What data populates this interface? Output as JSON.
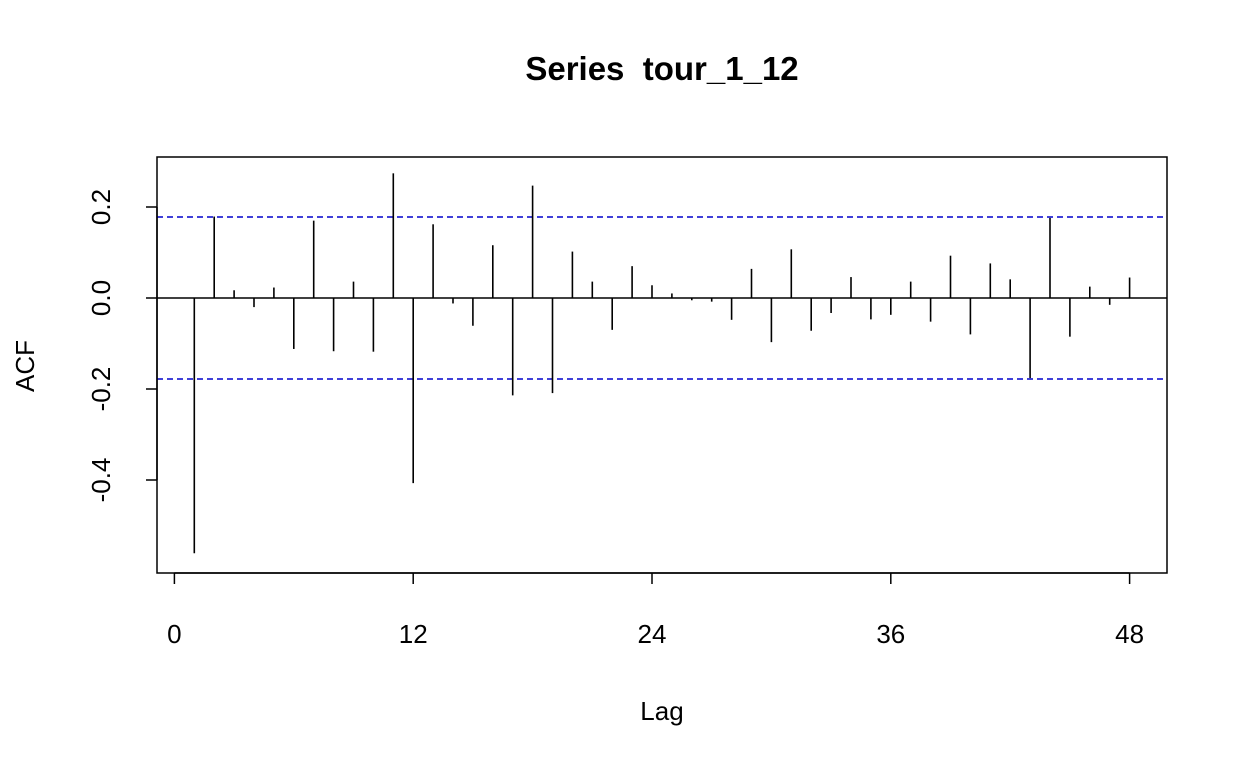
{
  "chart_data": {
    "type": "bar",
    "title": "Series  tour_1_12",
    "xlabel": "Lag",
    "ylabel": "ACF",
    "xlim": [
      -1,
      50
    ],
    "ylim": [
      -0.58,
      0.31
    ],
    "x_ticks": [
      0,
      12,
      24,
      36,
      48
    ],
    "x_tick_labels": [
      "0",
      "12",
      "24",
      "36",
      "48"
    ],
    "y_ticks": [
      -0.4,
      -0.2,
      0.0,
      0.2
    ],
    "y_tick_labels": [
      "-0.4",
      "-0.2",
      "0.0",
      "0.2"
    ],
    "confidence_bounds": [
      0.178,
      -0.178
    ],
    "zero_line": 0,
    "colors": {
      "bars": "#000000",
      "bounds": "#0000CC",
      "axes": "#000000"
    },
    "lags": [
      1,
      2,
      3,
      4,
      5,
      6,
      7,
      8,
      9,
      10,
      11,
      12,
      13,
      14,
      15,
      16,
      17,
      18,
      19,
      20,
      21,
      22,
      23,
      24,
      25,
      26,
      27,
      28,
      29,
      30,
      31,
      32,
      33,
      34,
      35,
      36,
      37,
      38,
      39,
      40,
      41,
      42,
      43,
      44,
      45,
      46,
      47,
      48
    ],
    "values": [
      -0.561,
      0.179,
      0.017,
      -0.02,
      0.023,
      -0.112,
      0.17,
      -0.117,
      0.036,
      -0.118,
      0.274,
      -0.407,
      0.162,
      -0.012,
      -0.061,
      0.116,
      -0.214,
      0.247,
      -0.209,
      0.102,
      0.036,
      -0.07,
      0.07,
      0.028,
      0.01,
      -0.005,
      -0.008,
      -0.048,
      0.064,
      -0.097,
      0.107,
      -0.072,
      -0.033,
      0.046,
      -0.047,
      -0.037,
      0.036,
      -0.052,
      0.093,
      -0.08,
      0.076,
      0.041,
      -0.176,
      0.176,
      -0.085,
      0.025,
      -0.015,
      0.045
    ]
  }
}
